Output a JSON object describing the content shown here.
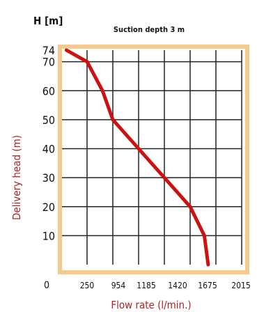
{
  "chart_data": {
    "type": "line",
    "subtitle": "Suction depth 3 m",
    "y_axis_title": "H [m]",
    "ylabel": "Delivery head (m)",
    "xlabel": "Flow rate (l/min.)",
    "x_origin_label": "0",
    "x_tick_labels": [
      "250",
      "954",
      "1185",
      "1420",
      "1675",
      "2015"
    ],
    "y_tick_labels": [
      "74",
      "70",
      "60",
      "50",
      "40",
      "30",
      "20",
      "10"
    ],
    "y_tick_values": [
      74,
      70,
      60,
      50,
      40,
      30,
      20,
      10
    ],
    "ylim": [
      0,
      74
    ],
    "grid": true,
    "colors": {
      "curve": "#cc1111",
      "frame": "#f5c98e",
      "axis_title": "#b22222",
      "grid": "#222222"
    },
    "series": [
      {
        "x_positions": [
          0.2,
          1.0,
          1.6,
          2.0,
          3.0,
          4.0,
          5.0,
          5.55,
          5.7
        ],
        "values": [
          74,
          70,
          60,
          50,
          40,
          30,
          20,
          10,
          0
        ]
      }
    ]
  }
}
